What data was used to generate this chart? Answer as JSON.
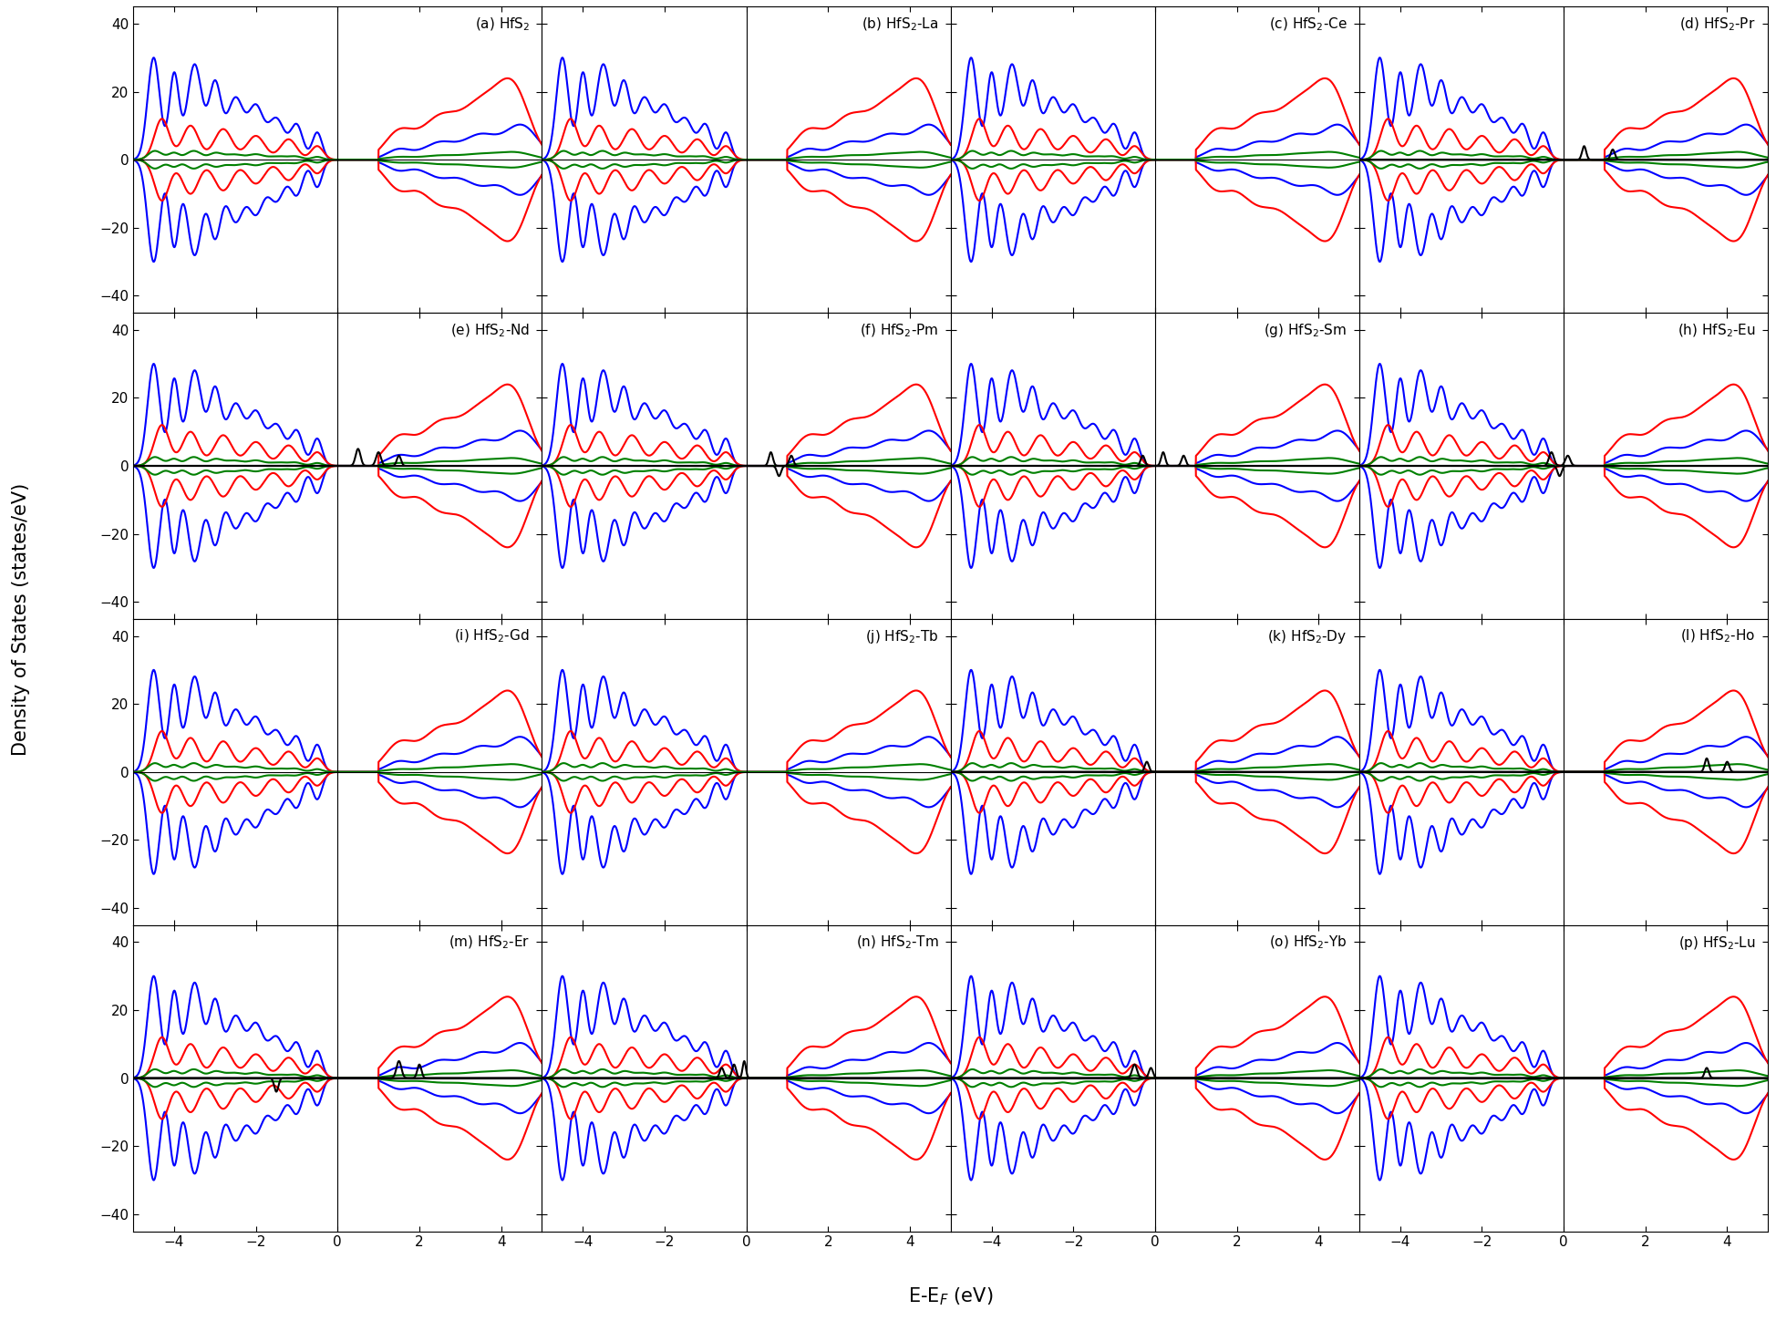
{
  "panels": [
    {
      "label": "(a) HfS$_2$",
      "tag": "HfS2"
    },
    {
      "label": "(b) HfS$_2$-La",
      "tag": "La"
    },
    {
      "label": "(c) HfS$_2$-Ce",
      "tag": "Ce"
    },
    {
      "label": "(d) HfS$_2$-Pr",
      "tag": "Pr"
    },
    {
      "label": "(e) HfS$_2$-Nd",
      "tag": "Nd"
    },
    {
      "label": "(f) HfS$_2$-Pm",
      "tag": "Pm"
    },
    {
      "label": "(g) HfS$_2$-Sm",
      "tag": "Sm"
    },
    {
      "label": "(h) HfS$_2$-Eu",
      "tag": "Eu"
    },
    {
      "label": "(i) HfS$_2$-Gd",
      "tag": "Gd"
    },
    {
      "label": "(j) HfS$_2$-Tb",
      "tag": "Tb"
    },
    {
      "label": "(k) HfS$_2$-Dy",
      "tag": "Dy"
    },
    {
      "label": "(l) HfS$_2$-Ho",
      "tag": "Ho"
    },
    {
      "label": "(m) HfS$_2$-Er",
      "tag": "Er"
    },
    {
      "label": "(n) HfS$_2$-Tm",
      "tag": "Tm"
    },
    {
      "label": "(o) HfS$_2$-Yb",
      "tag": "Yb"
    },
    {
      "label": "(p) HfS$_2$-Lu",
      "tag": "Lu"
    }
  ],
  "xlim": [
    -5,
    5
  ],
  "ylim": [
    -45,
    45
  ],
  "yticks": [
    -40,
    -20,
    0,
    20,
    40
  ],
  "xticks": [
    -4,
    -2,
    0,
    2,
    4
  ],
  "xlabel": "E-E$_F$ (eV)",
  "ylabel": "Density of States (states/eV)",
  "colors": {
    "blue": "#0000FF",
    "red": "#FF0000",
    "green": "#008000",
    "black": "#000000"
  },
  "figsize": [
    19.49,
    14.6
  ],
  "dpi": 100
}
